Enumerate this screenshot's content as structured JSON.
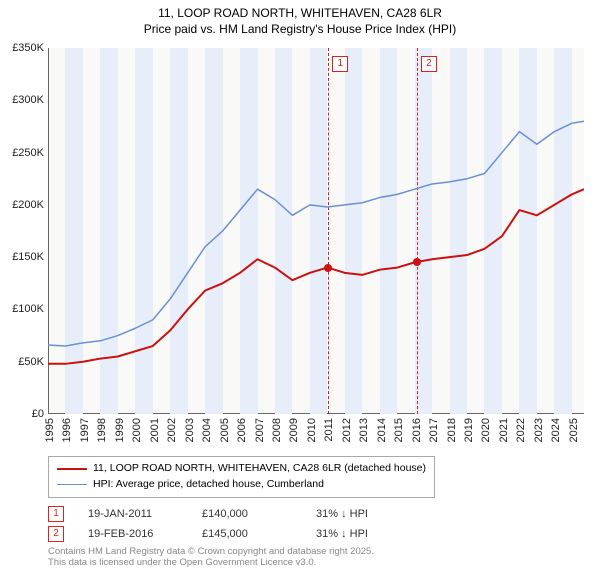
{
  "title_line1": "11, LOOP ROAD NORTH, WHITEHAVEN, CA28 6LR",
  "title_line2": "Price paid vs. HM Land Registry's House Price Index (HPI)",
  "chart": {
    "type": "line",
    "background_color": "#f9f9f7",
    "band_color": "#e8eef9",
    "axis_color": "#666666",
    "x_range": [
      1995,
      2025.7
    ],
    "y_range": [
      0,
      350000
    ],
    "y_ticks": [
      0,
      50000,
      100000,
      150000,
      200000,
      250000,
      300000,
      350000
    ],
    "y_tick_labels": [
      "£0",
      "£50K",
      "£100K",
      "£150K",
      "£200K",
      "£250K",
      "£300K",
      "£350K"
    ],
    "x_ticks": [
      1995,
      1996,
      1997,
      1998,
      1999,
      2000,
      2001,
      2002,
      2003,
      2004,
      2005,
      2006,
      2007,
      2008,
      2009,
      2010,
      2011,
      2012,
      2013,
      2014,
      2015,
      2016,
      2017,
      2018,
      2019,
      2020,
      2021,
      2022,
      2023,
      2024,
      2025
    ],
    "bands_alt_start": 1995,
    "series": [
      {
        "name": "property_price",
        "legend": "11, LOOP ROAD NORTH, WHITEHAVEN, CA28 6LR (detached house)",
        "color": "#cc1111",
        "line_width": 2,
        "points": [
          [
            1995,
            48000
          ],
          [
            1996,
            48000
          ],
          [
            1997,
            50000
          ],
          [
            1998,
            53000
          ],
          [
            1999,
            55000
          ],
          [
            2000,
            60000
          ],
          [
            2001,
            65000
          ],
          [
            2002,
            80000
          ],
          [
            2003,
            100000
          ],
          [
            2004,
            118000
          ],
          [
            2005,
            125000
          ],
          [
            2006,
            135000
          ],
          [
            2007,
            148000
          ],
          [
            2008,
            140000
          ],
          [
            2009,
            128000
          ],
          [
            2010,
            135000
          ],
          [
            2011,
            140000
          ],
          [
            2012,
            135000
          ],
          [
            2013,
            133000
          ],
          [
            2014,
            138000
          ],
          [
            2015,
            140000
          ],
          [
            2016,
            145000
          ],
          [
            2017,
            148000
          ],
          [
            2018,
            150000
          ],
          [
            2019,
            152000
          ],
          [
            2020,
            158000
          ],
          [
            2021,
            170000
          ],
          [
            2022,
            195000
          ],
          [
            2023,
            190000
          ],
          [
            2024,
            200000
          ],
          [
            2025,
            210000
          ],
          [
            2025.7,
            215000
          ]
        ]
      },
      {
        "name": "hpi",
        "legend": "HPI: Average price, detached house, Cumberland",
        "color": "#6b8fd4",
        "line_width": 1.5,
        "points": [
          [
            1995,
            66000
          ],
          [
            1996,
            65000
          ],
          [
            1997,
            68000
          ],
          [
            1998,
            70000
          ],
          [
            1999,
            75000
          ],
          [
            2000,
            82000
          ],
          [
            2001,
            90000
          ],
          [
            2002,
            110000
          ],
          [
            2003,
            135000
          ],
          [
            2004,
            160000
          ],
          [
            2005,
            175000
          ],
          [
            2006,
            195000
          ],
          [
            2007,
            215000
          ],
          [
            2008,
            205000
          ],
          [
            2009,
            190000
          ],
          [
            2010,
            200000
          ],
          [
            2011,
            198000
          ],
          [
            2012,
            200000
          ],
          [
            2013,
            202000
          ],
          [
            2014,
            207000
          ],
          [
            2015,
            210000
          ],
          [
            2016,
            215000
          ],
          [
            2017,
            220000
          ],
          [
            2018,
            222000
          ],
          [
            2019,
            225000
          ],
          [
            2020,
            230000
          ],
          [
            2021,
            250000
          ],
          [
            2022,
            270000
          ],
          [
            2023,
            258000
          ],
          [
            2024,
            270000
          ],
          [
            2025,
            278000
          ],
          [
            2025.7,
            280000
          ]
        ]
      }
    ],
    "vlines": [
      {
        "x": 2011.05,
        "label": "1",
        "color": "#d22222"
      },
      {
        "x": 2016.13,
        "label": "2",
        "color": "#d22222"
      }
    ],
    "sale_markers": [
      {
        "x": 2011.05,
        "y": 140000,
        "color": "#cc1111"
      },
      {
        "x": 2016.13,
        "y": 145000,
        "color": "#cc1111"
      }
    ]
  },
  "sales": [
    {
      "num": "1",
      "date": "19-JAN-2011",
      "price": "£140,000",
      "delta": "31% ↓ HPI"
    },
    {
      "num": "2",
      "date": "19-FEB-2016",
      "price": "£145,000",
      "delta": "31% ↓ HPI"
    }
  ],
  "footer_line1": "Contains HM Land Registry data © Crown copyright and database right 2025.",
  "footer_line2": "This data is licensed under the Open Government Licence v3.0."
}
